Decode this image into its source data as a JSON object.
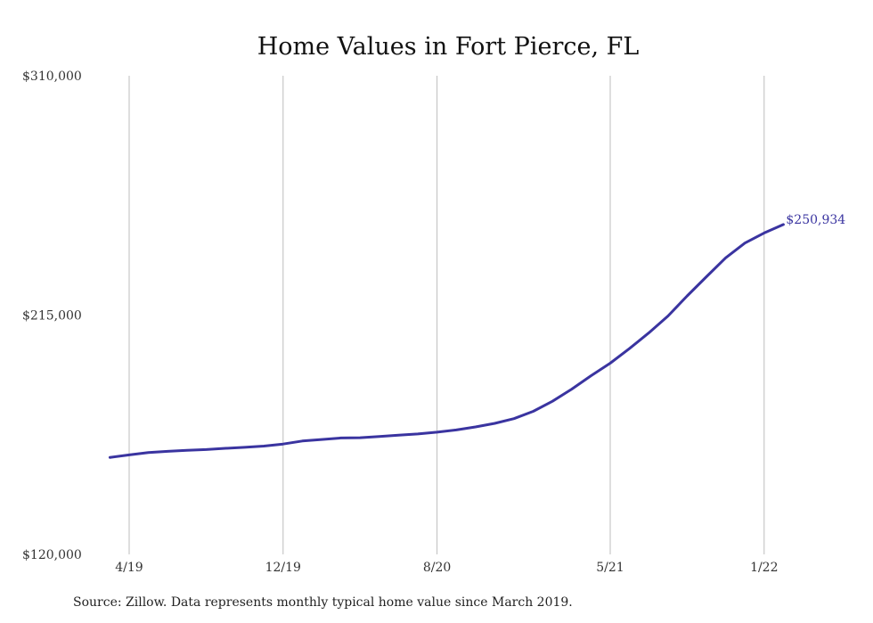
{
  "chart_data": {
    "type": "line",
    "title": "Home Values in Fort Pierce, FL",
    "xlabel": "",
    "ylabel": "",
    "ylim": [
      120000,
      310000
    ],
    "y_ticks": [
      "$310,000",
      "$215,000",
      "$120,000"
    ],
    "y_tick_values": [
      310000,
      215000,
      120000
    ],
    "x_ticks": [
      "4/19",
      "12/19",
      "8/20",
      "5/21",
      "1/22"
    ],
    "x_tick_dates": [
      "2019-04",
      "2019-12",
      "2020-08",
      "2021-05",
      "2022-01"
    ],
    "grid": "vertical",
    "series": [
      {
        "color": "#3a34a0",
        "x": [
          "2019-03",
          "2019-04",
          "2019-05",
          "2019-06",
          "2019-07",
          "2019-08",
          "2019-09",
          "2019-10",
          "2019-11",
          "2019-12",
          "2020-01",
          "2020-02",
          "2020-03",
          "2020-04",
          "2020-05",
          "2020-06",
          "2020-07",
          "2020-08",
          "2020-09",
          "2020-10",
          "2020-11",
          "2020-12",
          "2021-01",
          "2021-02",
          "2021-03",
          "2021-04",
          "2021-05",
          "2021-06",
          "2021-07",
          "2021-08",
          "2021-09",
          "2021-10",
          "2021-11",
          "2021-12",
          "2022-01",
          "2022-02"
        ],
        "values": [
          158500,
          159500,
          160400,
          160900,
          161300,
          161600,
          162100,
          162500,
          163000,
          163800,
          165000,
          165600,
          166200,
          166300,
          166800,
          167300,
          167800,
          168500,
          169400,
          170600,
          172000,
          173900,
          176800,
          180800,
          185600,
          190900,
          195900,
          201700,
          207900,
          214600,
          222600,
          230200,
          237700,
          243600,
          247600,
          250934
        ]
      }
    ],
    "end_label": "$250,934"
  },
  "source_note": "Source: Zillow. Data represents monthly typical home value since March 2019."
}
